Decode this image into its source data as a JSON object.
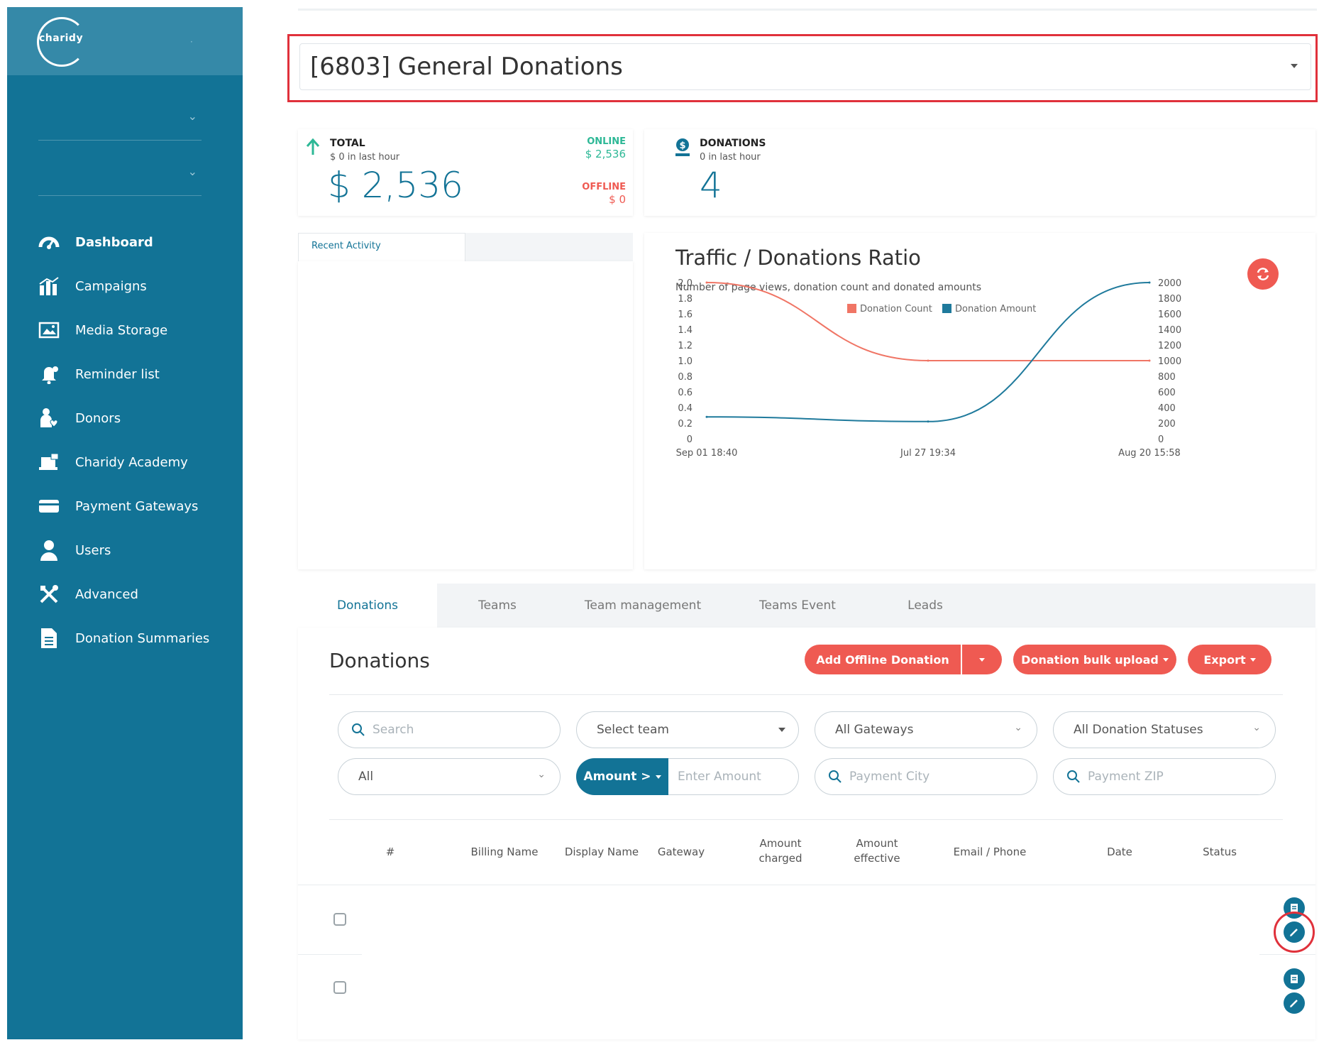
{
  "brand": {
    "logo_text": "charidy",
    "accent": "#127396",
    "danger": "#ef5a52",
    "success": "#2db896"
  },
  "sidebar": {
    "items": [
      {
        "label": "Dashboard",
        "icon": "dashboard-gauge-icon",
        "active": true
      },
      {
        "label": "Campaigns",
        "icon": "campaigns-chart-icon"
      },
      {
        "label": "Media Storage",
        "icon": "media-image-icon"
      },
      {
        "label": "Reminder list",
        "icon": "reminder-bell-icon"
      },
      {
        "label": "Donors",
        "icon": "donor-person-heart-icon"
      },
      {
        "label": "Charidy Academy",
        "icon": "academy-laptop-icon"
      },
      {
        "label": "Payment Gateways",
        "icon": "credit-card-icon"
      },
      {
        "label": "Users",
        "icon": "user-icon"
      },
      {
        "label": "Advanced",
        "icon": "tools-icon"
      },
      {
        "label": "Donation Summaries",
        "icon": "document-icon"
      }
    ]
  },
  "campaign_select": {
    "value": "[6803] General Donations"
  },
  "total_card": {
    "title": "TOTAL",
    "sub": "$ 0 in last hour",
    "amount": "$ 2,536",
    "online_label": "ONLINE",
    "online_value": "$ 2,536",
    "offline_label": "OFFLINE",
    "offline_value": "$ 0"
  },
  "donations_card": {
    "title": "DONATIONS",
    "sub": "0 in last hour",
    "count": "4"
  },
  "activity": {
    "tab_label": "Recent Activity"
  },
  "chart": {
    "title": "Traffic / Donations Ratio",
    "subtitle": "Number of page views, donation count and donated amounts"
  },
  "chart_data": {
    "type": "line",
    "x": [
      "Sep 01 18:40",
      "Jul 27 19:34",
      "Aug 20 15:58"
    ],
    "series": [
      {
        "name": "Donation Count",
        "axis": "left",
        "color": "#f07565",
        "values": [
          2.0,
          1.0,
          1.0
        ]
      },
      {
        "name": "Donation Amount",
        "axis": "right",
        "color": "#1f7a9c",
        "values": [
          280,
          220,
          2000
        ]
      }
    ],
    "y_left": {
      "ticks": [
        "2.0",
        "1.8",
        "1.6",
        "1.4",
        "1.2",
        "1.0",
        "0.8",
        "0.6",
        "0.4",
        "0.2",
        "0"
      ],
      "lim": [
        0,
        2.0
      ]
    },
    "y_right": {
      "ticks": [
        "2000",
        "1800",
        "1600",
        "1400",
        "1200",
        "1000",
        "800",
        "600",
        "400",
        "200",
        "0"
      ],
      "lim": [
        0,
        2000
      ]
    },
    "legend": "top-center",
    "grid": false
  },
  "tabs": [
    "Donations",
    "Teams",
    "Team management",
    "Teams Event",
    "Leads"
  ],
  "donations": {
    "title": "Donations",
    "add_offline": "Add Offline Donation",
    "bulk_upload": "Donation bulk upload",
    "export": "Export",
    "filters": {
      "search_placeholder": "Search",
      "team": "Select team",
      "gateways": "All Gateways",
      "statuses": "All Donation Statuses",
      "type": "All",
      "amount_btn": "Amount >",
      "amount_placeholder": "Enter Amount",
      "city_placeholder": "Payment City",
      "zip_placeholder": "Payment ZIP"
    },
    "columns": [
      "#",
      "Billing Name",
      "Display Name",
      "Gateway",
      "Amount\ncharged",
      "Amount\neffective",
      "Email / Phone",
      "Date",
      "Status"
    ]
  }
}
